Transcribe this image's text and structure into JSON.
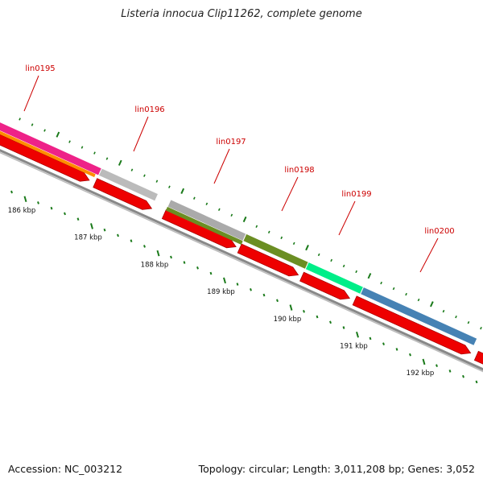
{
  "title": "Listeria innocua Clip11262, complete genome",
  "footer": {
    "accession": "Accession: NC_003212",
    "summary": "Topology: circular; Length: 3,011,208 bp; Genes: 3,052"
  },
  "colors": {
    "cds_arrow": "#ee0000",
    "backbone": "#888888",
    "tick": "#1a7a1a",
    "label": "#cc0000"
  },
  "genes": [
    {
      "name": "lin0195",
      "color": "#ee2288",
      "show_label": true
    },
    {
      "name": "lin0196",
      "color": "#bbbbbb",
      "show_label": true
    },
    {
      "name": "lin0197",
      "color": "#aaaaaa",
      "show_label": true
    },
    {
      "name": "lin0198",
      "color": "#6b8e23",
      "show_label": true
    },
    {
      "name": "lin0199",
      "color": "#00ee88",
      "show_label": true
    },
    {
      "name": "lin0200",
      "color": "#4682b4",
      "show_label": true
    }
  ],
  "scale": {
    "unit": "kbp",
    "labels": [
      "186 kbp",
      "187 kbp",
      "188 kbp",
      "189 kbp",
      "190 kbp",
      "191 kbp",
      "192 kbp"
    ]
  }
}
